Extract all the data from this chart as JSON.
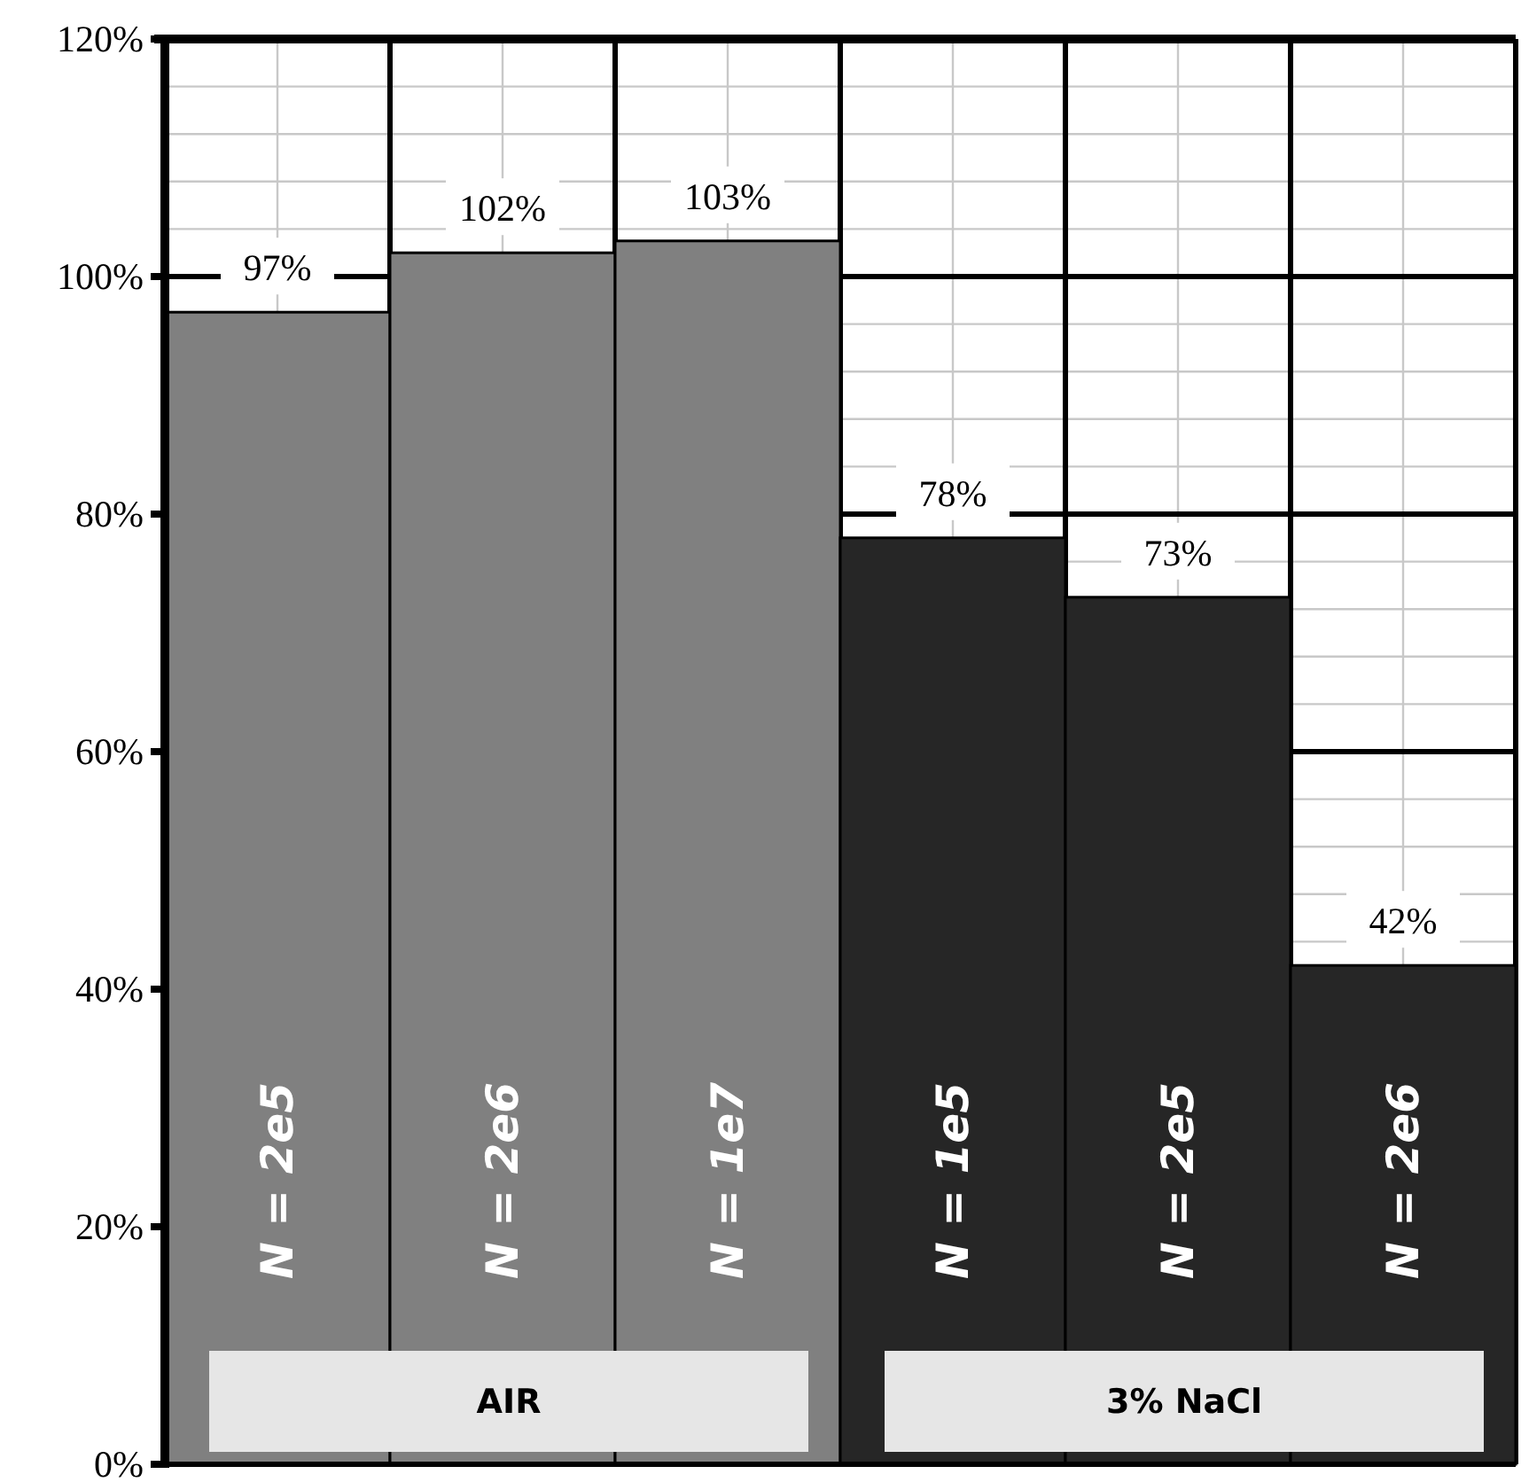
{
  "chart_data": {
    "type": "bar",
    "categories": [
      "N = 2e5",
      "N = 2e6",
      "N = 1e7",
      "N = 1e5",
      "N = 2e5",
      "N = 2e6"
    ],
    "series": [
      {
        "name": "AIR",
        "color": "#808080",
        "values": [
          97,
          102,
          103,
          null,
          null,
          null
        ],
        "value_labels": [
          "97%",
          "102%",
          "103%",
          null,
          null,
          null
        ]
      },
      {
        "name": "3% NaCl",
        "color": "#262626",
        "values": [
          null,
          null,
          null,
          78,
          73,
          42
        ],
        "value_labels": [
          null,
          null,
          null,
          "78%",
          "73%",
          "42%"
        ]
      }
    ],
    "ylim": [
      0,
      120
    ],
    "yticks": [
      {
        "value": 0,
        "label": "0%"
      },
      {
        "value": 20,
        "label": "20%"
      },
      {
        "value": 40,
        "label": "40%"
      },
      {
        "value": 60,
        "label": "60%"
      },
      {
        "value": 80,
        "label": "80%"
      },
      {
        "value": 100,
        "label": "100%"
      },
      {
        "value": 120,
        "label": "120%"
      }
    ],
    "grid": true
  }
}
